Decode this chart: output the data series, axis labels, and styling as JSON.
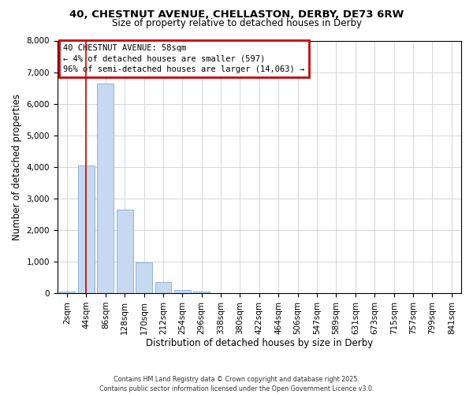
{
  "title_line1": "40, CHESTNUT AVENUE, CHELLASTON, DERBY, DE73 6RW",
  "title_line2": "Size of property relative to detached houses in Derby",
  "xlabel": "Distribution of detached houses by size in Derby",
  "ylabel": "Number of detached properties",
  "categories": [
    "2sqm",
    "44sqm",
    "86sqm",
    "128sqm",
    "170sqm",
    "212sqm",
    "254sqm",
    "296sqm",
    "338sqm",
    "380sqm",
    "422sqm",
    "464sqm",
    "506sqm",
    "547sqm",
    "589sqm",
    "631sqm",
    "673sqm",
    "715sqm",
    "757sqm",
    "799sqm",
    "841sqm"
  ],
  "bar_values": [
    50,
    4050,
    6650,
    2650,
    970,
    340,
    110,
    50,
    0,
    0,
    0,
    0,
    0,
    0,
    0,
    0,
    0,
    0,
    0,
    0,
    0
  ],
  "bar_color": "#c6d9f0",
  "bar_edge_color": "#90b4d8",
  "ylim": [
    0,
    8000
  ],
  "yticks": [
    0,
    1000,
    2000,
    3000,
    4000,
    5000,
    6000,
    7000,
    8000
  ],
  "vline_x": 1.0,
  "vline_color": "#cc0000",
  "annotation_title": "40 CHESTNUT AVENUE: 58sqm",
  "annotation_line2": "← 4% of detached houses are smaller (597)",
  "annotation_line3": "96% of semi-detached houses are larger (14,063) →",
  "annotation_box_edgecolor": "#cc0000",
  "footer_line1": "Contains HM Land Registry data © Crown copyright and database right 2025.",
  "footer_line2": "Contains public sector information licensed under the Open Government Licence v3.0.",
  "figure_bg": "#ffffff",
  "plot_bg": "#ffffff",
  "grid_color": "#d0d0d0"
}
